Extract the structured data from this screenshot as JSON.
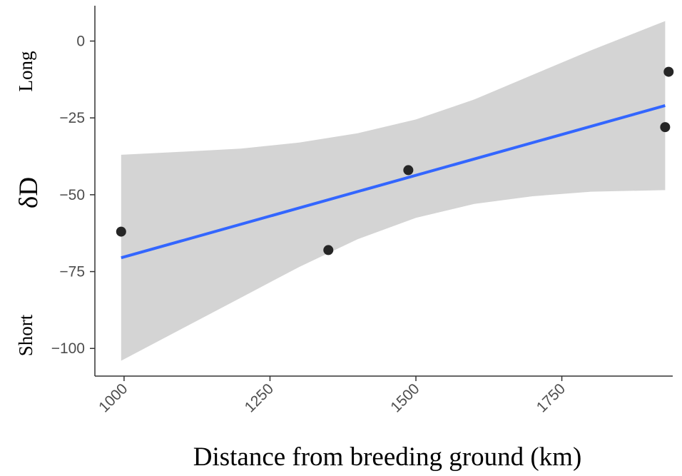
{
  "chart_data": {
    "type": "scatter",
    "title": "",
    "xlabel": "Distance from breeding ground (km)",
    "ylabel": "δD",
    "xlim": [
      950,
      1940
    ],
    "ylim": [
      -109,
      11.5
    ],
    "x_ticks": [
      1000,
      1250,
      1500,
      1750
    ],
    "x_tick_labels": [
      "1000",
      "1250",
      "1500",
      "1750"
    ],
    "y_ticks": [
      0,
      -25,
      -50,
      -75,
      -100
    ],
    "y_tick_labels": [
      "0",
      "−25",
      "−50",
      "−75",
      "−100"
    ],
    "side_labels": {
      "top": "Long",
      "bottom": "Short"
    },
    "grid": false,
    "legend": "none",
    "points": [
      {
        "x": 995,
        "y": -62
      },
      {
        "x": 1350,
        "y": -68
      },
      {
        "x": 1487,
        "y": -42
      },
      {
        "x": 1927,
        "y": -28
      },
      {
        "x": 1933,
        "y": -10
      }
    ],
    "trend_line": {
      "x": [
        995,
        1927
      ],
      "y": [
        -70.5,
        -21
      ]
    },
    "confidence_band": {
      "x": [
        995,
        1100,
        1200,
        1300,
        1400,
        1500,
        1600,
        1700,
        1800,
        1927
      ],
      "upper": [
        -37,
        -36,
        -35,
        -33,
        -30,
        -25.5,
        -19,
        -11,
        -3,
        6.5
      ],
      "lower": [
        -104,
        -93.5,
        -83.5,
        -73.5,
        -64.5,
        -57.5,
        -53,
        -50.5,
        -49,
        -48.5
      ]
    },
    "colors": {
      "points": "#262626",
      "line": "#3366ff",
      "band": "#d4d4d4",
      "axis": "#333333"
    }
  }
}
